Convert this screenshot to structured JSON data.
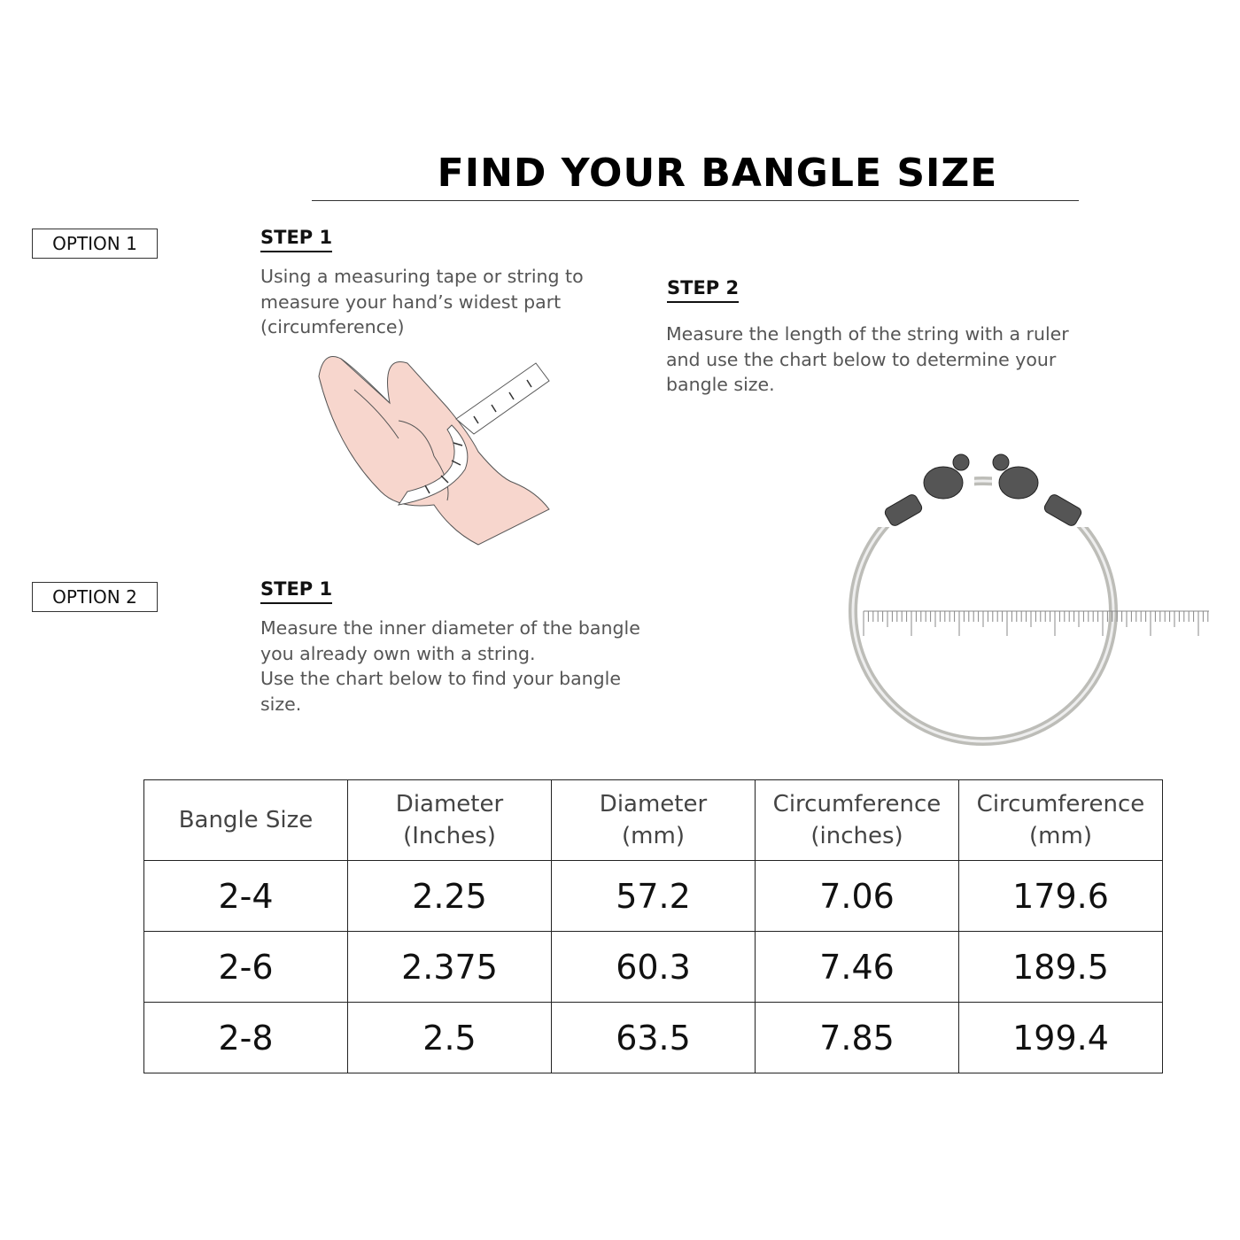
{
  "title": "FIND YOUR BANGLE SIZE",
  "option1": {
    "label": "OPTION 1",
    "step1": {
      "heading": "STEP 1",
      "lines": [
        "Using a measuring tape or string to",
        "measure your hand’s widest part",
        "(circumference)"
      ]
    },
    "step2": {
      "heading": "STEP 2",
      "lines": [
        "Measure the length of the string with a ruler",
        "and use the chart below to determine your",
        "bangle size."
      ]
    }
  },
  "option2": {
    "label": "OPTION 2",
    "step1": {
      "heading": "STEP 1",
      "lines": [
        "Measure the inner diameter of the bangle",
        "you already own with a string.",
        "Use the chart below to find your bangle",
        "size."
      ]
    }
  },
  "table": {
    "headers": [
      [
        "Bangle Size"
      ],
      [
        "Diameter",
        "(Inches)"
      ],
      [
        "Diameter",
        "(mm)"
      ],
      [
        "Circumference",
        "(inches)"
      ],
      [
        "Circumference",
        "(mm)"
      ]
    ],
    "rows": [
      [
        "2-4",
        "2.25",
        "57.2",
        "7.06",
        "179.6"
      ],
      [
        "2-6",
        "2.375",
        "60.3",
        "7.46",
        "189.5"
      ],
      [
        "2-8",
        "2.5",
        "63.5",
        "7.85",
        "199.4"
      ]
    ]
  },
  "colors": {
    "skin": "#f7d6cd",
    "tape": "#ffffff",
    "silver": "#c9c9c4"
  }
}
